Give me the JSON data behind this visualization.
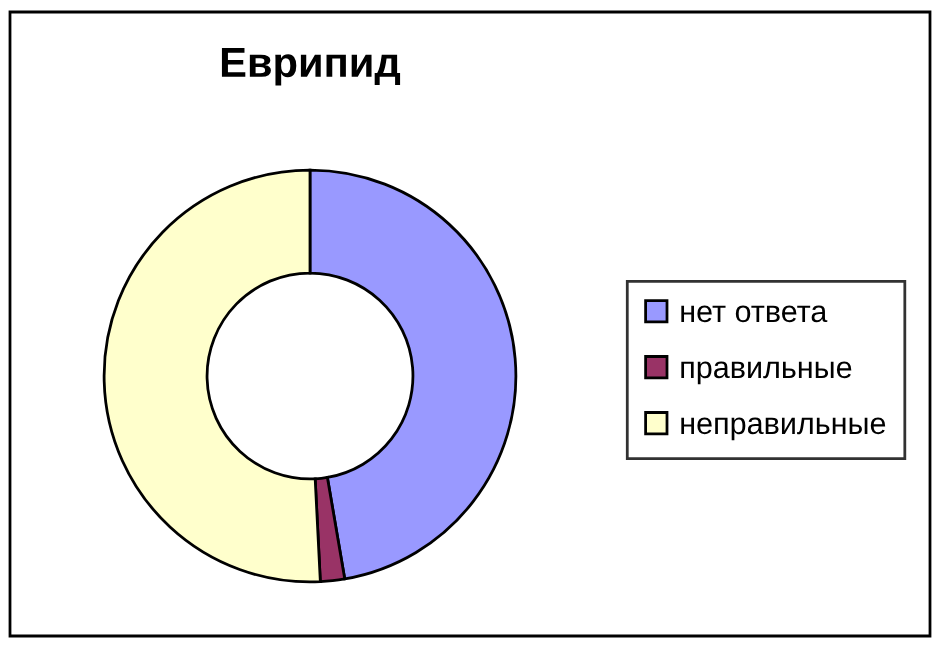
{
  "chart_data": {
    "type": "donut",
    "title": "Еврипид",
    "categories": [
      "нет ответа",
      "правильные",
      "неправильные"
    ],
    "values": [
      47.3,
      1.9,
      50.8
    ],
    "colors": [
      "#9999ff",
      "#993366",
      "#ffffcc"
    ],
    "legend": "right"
  }
}
